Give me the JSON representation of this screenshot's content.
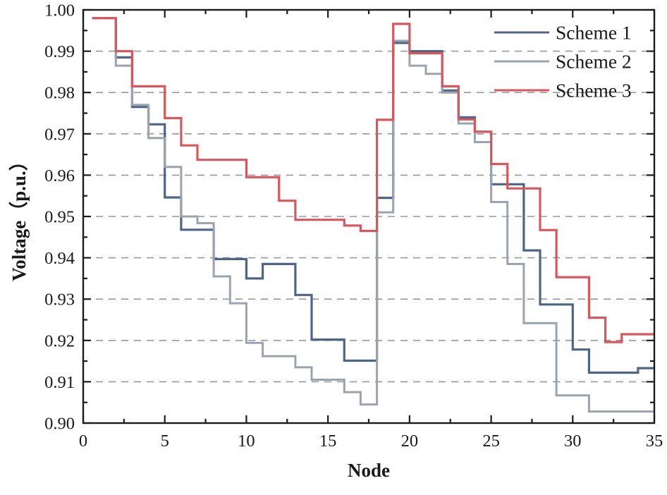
{
  "page": {
    "background": "#ffffff"
  },
  "chart_data": {
    "type": "line",
    "subtype": "step-post",
    "title": "",
    "xlabel": "Node",
    "ylabel": "Voltage（p.u.）",
    "xlim": [
      0,
      35
    ],
    "ylim": [
      0.9,
      1.0
    ],
    "x_major_ticks": [
      0,
      5,
      10,
      15,
      20,
      25,
      30,
      35
    ],
    "x_major_tick_labels": [
      "0",
      "5",
      "10",
      "15",
      "20",
      "25",
      "30",
      "35"
    ],
    "x_minor_ticks": [
      2.5,
      7.5,
      12.5,
      17.5,
      22.5,
      27.5,
      32.5
    ],
    "y_major_ticks": [
      0.9,
      0.91,
      0.92,
      0.93,
      0.94,
      0.95,
      0.96,
      0.97,
      0.98,
      0.99,
      1.0
    ],
    "y_major_tick_labels": [
      "0.90",
      "0.91",
      "0.92",
      "0.93",
      "0.94",
      "0.95",
      "0.96",
      "0.97",
      "0.98",
      "0.99",
      "1.00"
    ],
    "y_minor_ticks": [
      0.905,
      0.915,
      0.925,
      0.935,
      0.945,
      0.955,
      0.965,
      0.975,
      0.985,
      0.995
    ],
    "grid": {
      "horizontal_dashed_at": [
        0.91,
        0.92,
        0.93,
        0.94,
        0.95,
        0.96,
        0.97,
        0.98,
        0.99
      ],
      "color": "#999999",
      "style": "dashed"
    },
    "frame_color": "#1c1c1c",
    "text_color": "#1a1a1a",
    "legend_position": "top-right",
    "line_start_x": 0.55,
    "x": [
      1,
      2,
      3,
      4,
      5,
      6,
      7,
      8,
      9,
      10,
      11,
      12,
      13,
      14,
      15,
      16,
      17,
      18,
      19,
      20,
      21,
      22,
      23,
      24,
      25,
      26,
      27,
      28,
      29,
      30,
      31,
      32,
      33,
      34,
      35
    ],
    "series": [
      {
        "name": "Scheme 1",
        "color": "#4e6586",
        "stroke_width": 3.2,
        "values": [
          0.998,
          0.9885,
          0.9765,
          0.9723,
          0.9546,
          0.9468,
          0.9468,
          0.9397,
          0.9397,
          0.935,
          0.9385,
          0.9385,
          0.931,
          0.9202,
          0.9202,
          0.9151,
          0.9151,
          0.9545,
          0.992,
          0.99,
          0.99,
          0.9805,
          0.974,
          0.9705,
          0.9578,
          0.9578,
          0.9418,
          0.9287,
          0.9287,
          0.9178,
          0.9122,
          0.9122,
          0.9122,
          0.9133,
          0.9133
        ]
      },
      {
        "name": "Scheme 2",
        "color": "#9aa3af",
        "stroke_width": 3.0,
        "values": [
          0.998,
          0.9865,
          0.977,
          0.969,
          0.962,
          0.95,
          0.9484,
          0.9355,
          0.929,
          0.9194,
          0.9162,
          0.9162,
          0.9135,
          0.9105,
          0.9105,
          0.9075,
          0.9045,
          0.951,
          0.9925,
          0.9865,
          0.9845,
          0.98,
          0.9725,
          0.968,
          0.9535,
          0.9385,
          0.9242,
          0.9242,
          0.9067,
          0.9067,
          0.9028,
          0.9028,
          0.9028,
          0.9028,
          0.9028
        ]
      },
      {
        "name": "Scheme 3",
        "color": "#d8575f",
        "stroke_width": 3.2,
        "values": [
          0.998,
          0.99,
          0.9815,
          0.9815,
          0.9738,
          0.9672,
          0.9637,
          0.9637,
          0.9637,
          0.9595,
          0.9595,
          0.9538,
          0.9492,
          0.9492,
          0.9492,
          0.9478,
          0.9465,
          0.9734,
          0.9966,
          0.9895,
          0.9895,
          0.9815,
          0.9735,
          0.9705,
          0.9627,
          0.9568,
          0.9568,
          0.9467,
          0.9353,
          0.9353,
          0.9255,
          0.9196,
          0.9215,
          0.9215,
          0.9215
        ]
      }
    ]
  }
}
